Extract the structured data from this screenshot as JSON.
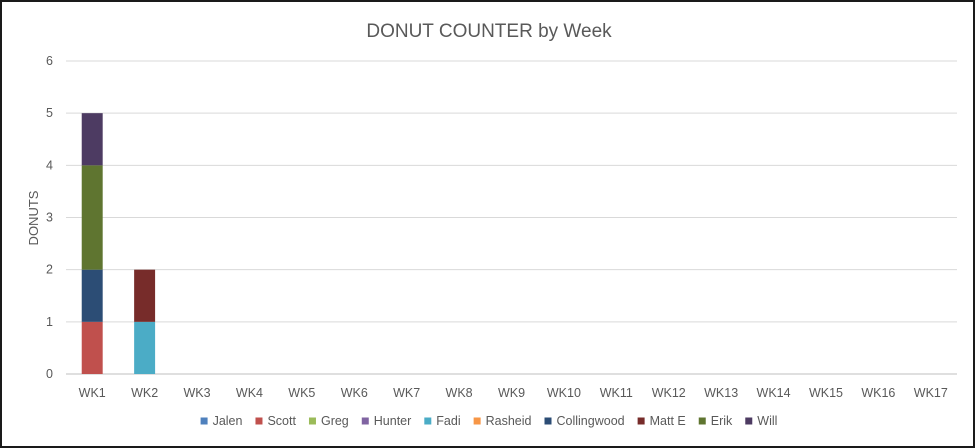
{
  "chart_data": {
    "type": "bar",
    "stacked": true,
    "title": "DONUT COUNTER by Week",
    "xlabel": "",
    "ylabel": "DONUTS",
    "ylim": [
      0,
      6
    ],
    "yticks": [
      0,
      1,
      2,
      3,
      4,
      5,
      6
    ],
    "grid": true,
    "legend_position": "bottom",
    "categories": [
      "WK1",
      "WK2",
      "WK3",
      "WK4",
      "WK5",
      "WK6",
      "WK7",
      "WK8",
      "WK9",
      "WK10",
      "WK11",
      "WK12",
      "WK13",
      "WK14",
      "WK15",
      "WK16",
      "WK17"
    ],
    "series": [
      {
        "name": "Jalen",
        "color": "#4f81bd",
        "values": [
          0,
          0,
          0,
          0,
          0,
          0,
          0,
          0,
          0,
          0,
          0,
          0,
          0,
          0,
          0,
          0,
          0
        ]
      },
      {
        "name": "Scott",
        "color": "#c0504d",
        "values": [
          1,
          0,
          0,
          0,
          0,
          0,
          0,
          0,
          0,
          0,
          0,
          0,
          0,
          0,
          0,
          0,
          0
        ]
      },
      {
        "name": "Greg",
        "color": "#9bbb59",
        "values": [
          0,
          0,
          0,
          0,
          0,
          0,
          0,
          0,
          0,
          0,
          0,
          0,
          0,
          0,
          0,
          0,
          0
        ]
      },
      {
        "name": "Hunter",
        "color": "#8064a2",
        "values": [
          0,
          0,
          0,
          0,
          0,
          0,
          0,
          0,
          0,
          0,
          0,
          0,
          0,
          0,
          0,
          0,
          0
        ]
      },
      {
        "name": "Fadi",
        "color": "#4bacc6",
        "values": [
          0,
          1,
          0,
          0,
          0,
          0,
          0,
          0,
          0,
          0,
          0,
          0,
          0,
          0,
          0,
          0,
          0
        ]
      },
      {
        "name": "Rasheid",
        "color": "#f79646",
        "values": [
          0,
          0,
          0,
          0,
          0,
          0,
          0,
          0,
          0,
          0,
          0,
          0,
          0,
          0,
          0,
          0,
          0
        ]
      },
      {
        "name": "Collingwood",
        "color": "#2c4d75",
        "values": [
          1,
          0,
          0,
          0,
          0,
          0,
          0,
          0,
          0,
          0,
          0,
          0,
          0,
          0,
          0,
          0,
          0
        ]
      },
      {
        "name": "Matt E",
        "color": "#772c2a",
        "values": [
          0,
          1,
          0,
          0,
          0,
          0,
          0,
          0,
          0,
          0,
          0,
          0,
          0,
          0,
          0,
          0,
          0
        ]
      },
      {
        "name": "Erik",
        "color": "#5f7530",
        "values": [
          2,
          0,
          0,
          0,
          0,
          0,
          0,
          0,
          0,
          0,
          0,
          0,
          0,
          0,
          0,
          0,
          0
        ]
      },
      {
        "name": "Will",
        "color": "#4d3b62",
        "values": [
          1,
          0,
          0,
          0,
          0,
          0,
          0,
          0,
          0,
          0,
          0,
          0,
          0,
          0,
          0,
          0,
          0
        ]
      }
    ]
  }
}
